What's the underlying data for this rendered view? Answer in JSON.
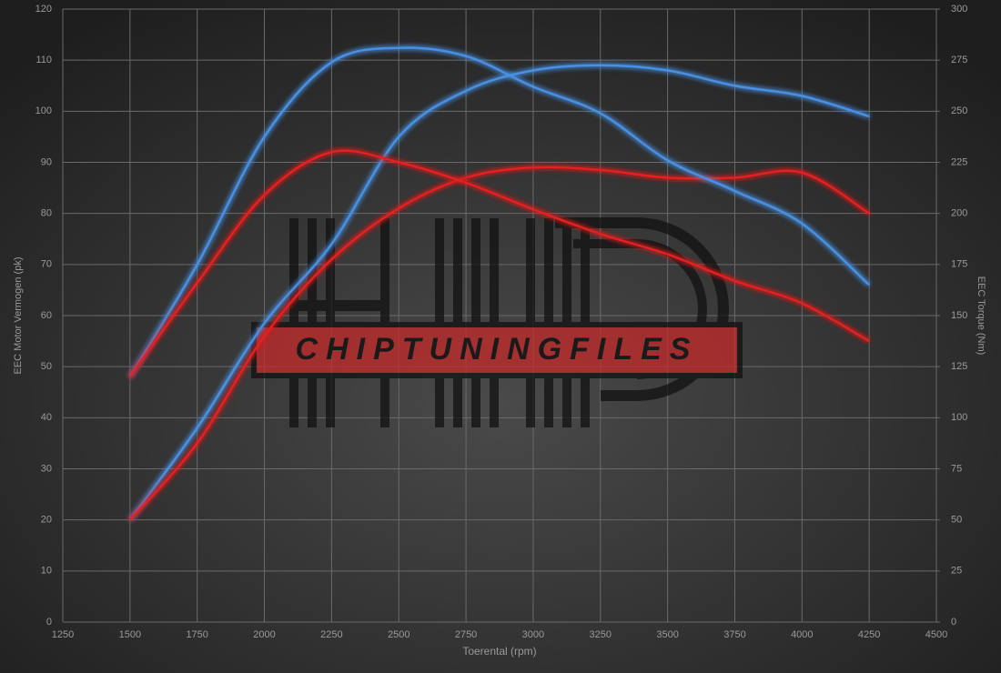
{
  "chart_data": {
    "type": "line",
    "xlabel": "Toerental (rpm)",
    "ylabel": "EEC Motor Vermogen (pk)",
    "y2label": "EEC Torque (Nm)",
    "watermark": "CHIPTUNINGFILES",
    "x": [
      1500,
      1750,
      2000,
      2250,
      2500,
      2750,
      3000,
      3250,
      3500,
      3750,
      4000,
      4250
    ],
    "xlim": [
      1250,
      4500
    ],
    "xticks": [
      1250,
      1500,
      1750,
      2000,
      2250,
      2500,
      2750,
      3000,
      3250,
      3500,
      3750,
      4000,
      4250,
      4500
    ],
    "ylim": [
      0,
      120
    ],
    "yticks": [
      0,
      10,
      20,
      30,
      40,
      50,
      60,
      70,
      80,
      90,
      100,
      110,
      120
    ],
    "y2lim": [
      0,
      300
    ],
    "y2ticks": [
      0,
      25,
      50,
      75,
      100,
      125,
      150,
      175,
      200,
      225,
      250,
      275,
      300
    ],
    "grid": true,
    "series": [
      {
        "color": "#4a90e2",
        "axis": "y",
        "values": [
          20,
          38,
          58.5,
          74,
          95,
          104,
          108,
          109,
          108,
          105,
          103,
          99
        ]
      },
      {
        "color": "#e02020",
        "axis": "y",
        "values": [
          20,
          35,
          56,
          71,
          81,
          87,
          89,
          88.5,
          87,
          87,
          88,
          80
        ]
      },
      {
        "color": "#4a90e2",
        "axis": "y2",
        "values": [
          120,
          175,
          237.5,
          274,
          281,
          277,
          262,
          249,
          226,
          211,
          195,
          165
        ]
      },
      {
        "color": "#e02020",
        "axis": "y2",
        "values": [
          120,
          166,
          209,
          230,
          225,
          215,
          202,
          190,
          180,
          167,
          156,
          137.5
        ]
      }
    ]
  }
}
